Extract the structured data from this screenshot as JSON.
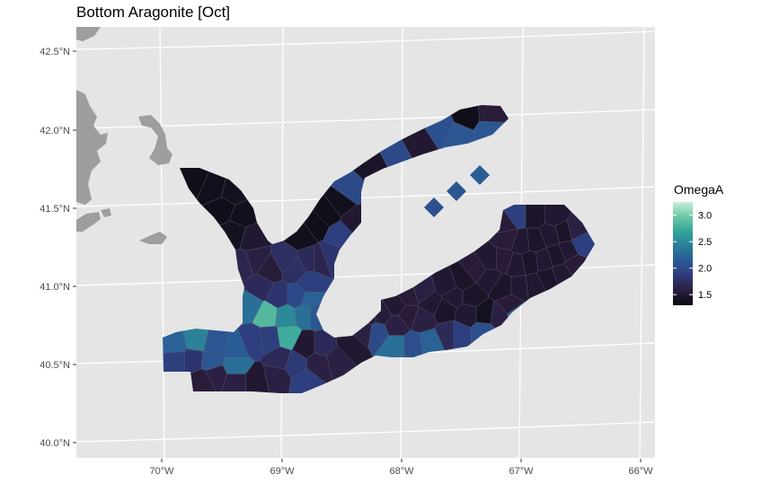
{
  "title": "Bottom Aragonite [Oct]",
  "legend": {
    "title": "OmegaA",
    "breaks": [
      "3.0",
      "2.5",
      "2.0",
      "1.5"
    ],
    "break_values": [
      3.0,
      2.5,
      2.0,
      1.5
    ],
    "range": [
      1.3,
      3.25
    ],
    "colors": [
      "#0a0a10",
      "#2b1e3e",
      "#2e3a7a",
      "#2a5a96",
      "#2a7d98",
      "#34a39a",
      "#6cc9a2",
      "#c8eedc"
    ]
  },
  "axes": {
    "x_labels": [
      "70°W",
      "69°W",
      "68°W",
      "67°W",
      "66°W"
    ],
    "x_values": [
      -70,
      -69,
      -68,
      -67,
      -66
    ],
    "y_labels": [
      "42.5°N",
      "42.0°N",
      "41.5°N",
      "41.0°N",
      "40.5°N",
      "40.0°N"
    ],
    "y_values": [
      42.5,
      42.0,
      41.5,
      41.0,
      40.5,
      40.0
    ]
  },
  "colors": {
    "panel": "#e5e5e5",
    "grid": "#ffffff",
    "land": "#9e9e9e",
    "cell_border": "#5a5a6a"
  }
}
